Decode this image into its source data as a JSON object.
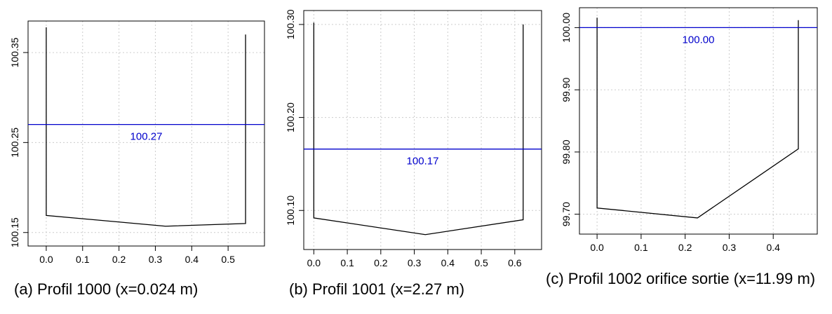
{
  "chart_data": [
    {
      "type": "line",
      "caption": "(a) Profil 1000 (x=0.024 m)",
      "xlim": [
        -0.05,
        0.6
      ],
      "ylim": [
        100.135,
        100.385
      ],
      "xticks": [
        0.0,
        0.1,
        0.2,
        0.3,
        0.4,
        0.5
      ],
      "xtick_labels": [
        "0.0",
        "0.1",
        "0.2",
        "0.3",
        "0.4",
        "0.5"
      ],
      "yticks": [
        100.15,
        100.25,
        100.35
      ],
      "ytick_labels": [
        "100.15",
        "100.25",
        "100.35"
      ],
      "grid": true,
      "profile": {
        "x": [
          0.0,
          0.0,
          0.328,
          0.548,
          0.548
        ],
        "y": [
          100.378,
          100.169,
          100.157,
          100.16,
          100.37
        ]
      },
      "water_level": 100.27,
      "water_level_label": "100.27"
    },
    {
      "type": "line",
      "caption": "(b) Profil 1001 (x=2.27 m)",
      "xlim": [
        -0.03,
        0.68
      ],
      "ylim": [
        100.058,
        100.315
      ],
      "xticks": [
        0.0,
        0.1,
        0.2,
        0.3,
        0.4,
        0.5,
        0.6
      ],
      "xtick_labels": [
        "0.0",
        "0.1",
        "0.2",
        "0.3",
        "0.4",
        "0.5",
        "0.6"
      ],
      "yticks": [
        100.1,
        100.2,
        100.3
      ],
      "ytick_labels": [
        "100.10",
        "100.20",
        "100.30"
      ],
      "grid": true,
      "profile": {
        "x": [
          0.0,
          0.0,
          0.333,
          0.625,
          0.625
        ],
        "y": [
          100.302,
          100.092,
          100.074,
          100.09,
          100.3
        ]
      },
      "water_level": 100.166,
      "water_level_label": "100.17"
    },
    {
      "type": "line",
      "caption": "(c) Profil 1002 orifice sortie (x=11.99 m)",
      "xlim": [
        -0.04,
        0.5
      ],
      "ylim": [
        99.668,
        100.032
      ],
      "xticks": [
        0.0,
        0.1,
        0.2,
        0.3,
        0.4
      ],
      "xtick_labels": [
        "0.0",
        "0.1",
        "0.2",
        "0.3",
        "0.4"
      ],
      "yticks": [
        99.7,
        99.8,
        99.9,
        100.0
      ],
      "ytick_labels": [
        "99.70",
        "99.80",
        "99.90",
        "100.00"
      ],
      "grid": true,
      "profile": {
        "x": [
          0.0,
          0.0,
          0.228,
          0.457,
          0.457
        ],
        "y": [
          100.016,
          99.71,
          99.694,
          99.805,
          100.012
        ]
      },
      "water_level": 100.0,
      "water_level_label": "100.00"
    }
  ],
  "colors": {
    "profile": "#000000",
    "water_level": "#0000cc",
    "grid": "#cccccc",
    "frame": "#000000"
  }
}
